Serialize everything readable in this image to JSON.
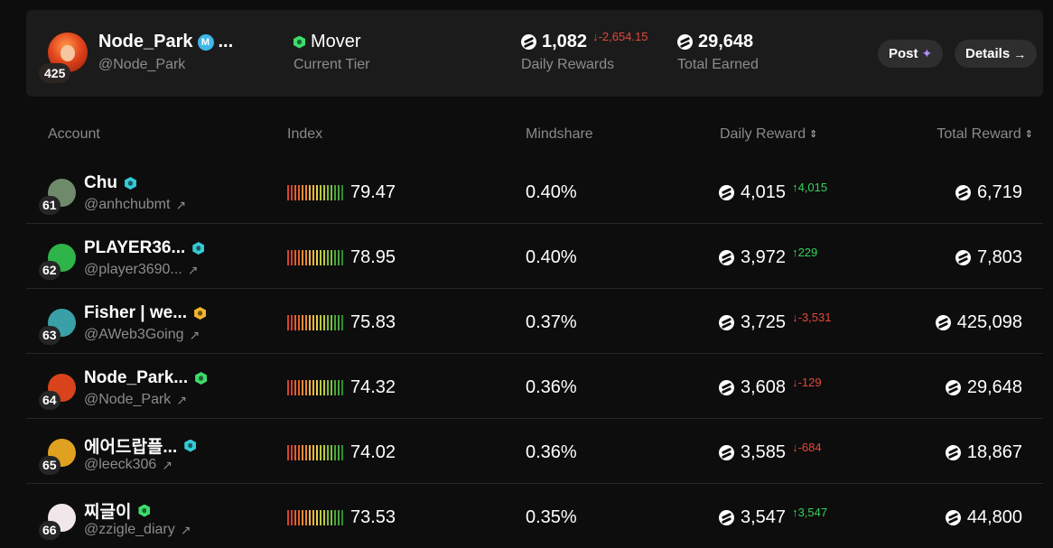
{
  "summary": {
    "rank": "425",
    "name": "Node_Park",
    "name_badge": "M",
    "name_suffix": "...",
    "handle": "@Node_Park",
    "tier": "Mover",
    "tier_caption": "Current Tier",
    "daily_rewards": "1,082",
    "daily_rewards_delta": "↓-2,654.15",
    "daily_rewards_caption": "Daily Rewards",
    "total_earned": "29,648",
    "total_earned_caption": "Total Earned",
    "post_label": "Post",
    "details_label": "Details",
    "post_icon": "sparkle-icon",
    "details_icon": "arrow-right-icon"
  },
  "table": {
    "headers": {
      "account": "Account",
      "index": "Index",
      "mindshare": "Mindshare",
      "daily_reward": "Daily Reward",
      "total_reward": "Total Reward"
    },
    "rows": [
      {
        "rank": "61",
        "name": "Chu",
        "badge": "teal",
        "handle": "@anhchubmt",
        "index": "79.47",
        "mindshare": "0.40%",
        "daily": "4,015",
        "delta": "↑4,015",
        "delta_dir": "up",
        "total": "6,719",
        "avatar_color": "#6f8a6b"
      },
      {
        "rank": "62",
        "name": "PLAYER36...",
        "badge": "teal",
        "handle": "@player3690...",
        "index": "78.95",
        "mindshare": "0.40%",
        "daily": "3,972",
        "delta": "↑229",
        "delta_dir": "up",
        "total": "7,803",
        "avatar_color": "#2fb44a"
      },
      {
        "rank": "63",
        "name": "Fisher | we...",
        "badge": "gold",
        "handle": "@AWeb3Going",
        "index": "75.83",
        "mindshare": "0.37%",
        "daily": "3,725",
        "delta": "↓-3,531",
        "delta_dir": "down",
        "total": "425,098",
        "avatar_color": "#3aa0a8"
      },
      {
        "rank": "64",
        "name": "Node_Park...",
        "badge": "green",
        "handle": "@Node_Park",
        "index": "74.32",
        "mindshare": "0.36%",
        "daily": "3,608",
        "delta": "↓-129",
        "delta_dir": "down",
        "total": "29,648",
        "avatar_color": "#d8431b"
      },
      {
        "rank": "65",
        "name": "에어드랍플...",
        "badge": "teal",
        "handle": "@leeck306",
        "index": "74.02",
        "mindshare": "0.36%",
        "daily": "3,585",
        "delta": "↓-684",
        "delta_dir": "down",
        "total": "18,867",
        "avatar_color": "#e0a020"
      },
      {
        "rank": "66",
        "name": "찌글이",
        "badge": "green",
        "handle": "@zzigle_diary",
        "index": "73.53",
        "mindshare": "0.35%",
        "daily": "3,547",
        "delta": "↑3,547",
        "delta_dir": "up",
        "total": "44,800",
        "avatar_color": "#f1e6ea"
      }
    ]
  },
  "colors": {
    "up": "#34d25a",
    "down": "#e3463b",
    "index_scale": [
      "#d9402f",
      "#e0602e",
      "#e88a34",
      "#f0b63a",
      "#e7cf48",
      "#b7c944",
      "#7fbb3f",
      "#4aa63b",
      "#2e8c34"
    ]
  }
}
